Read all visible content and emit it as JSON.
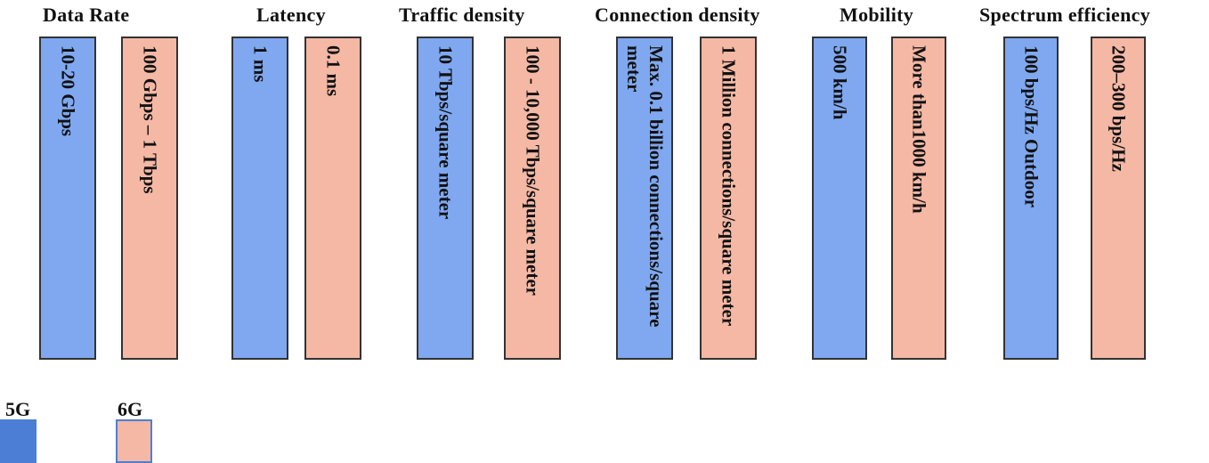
{
  "categories": [
    {
      "label": "Data Rate",
      "g5": "10-20 Gbps",
      "g6": "100 Gbps – 1 Tbps"
    },
    {
      "label": "Latency",
      "g5": "1 ms",
      "g6": "0.1 ms"
    },
    {
      "label": "Traffic density",
      "g5": "10 Tbps/square meter",
      "g6": "100 - 10,000 Tbps/square meter"
    },
    {
      "label": "Connection density",
      "g5": "Max. 0.1 billion connections/square meter",
      "g6": "1 Million connections/square meter"
    },
    {
      "label": "Mobility",
      "g5": "500 km/h",
      "g6": "More than1000 km/h"
    },
    {
      "label": "Spectrum efficiency",
      "g5": "100 bps/Hz Outdoor",
      "g6": "200–300 bps/Hz"
    }
  ],
  "legend": {
    "g5_label": "5G",
    "g6_label": "6G"
  },
  "colors": {
    "g5_fill": "#7fa8f0",
    "g6_fill": "#f5b8a4",
    "g5_swatch": "#4c7ed6"
  }
}
